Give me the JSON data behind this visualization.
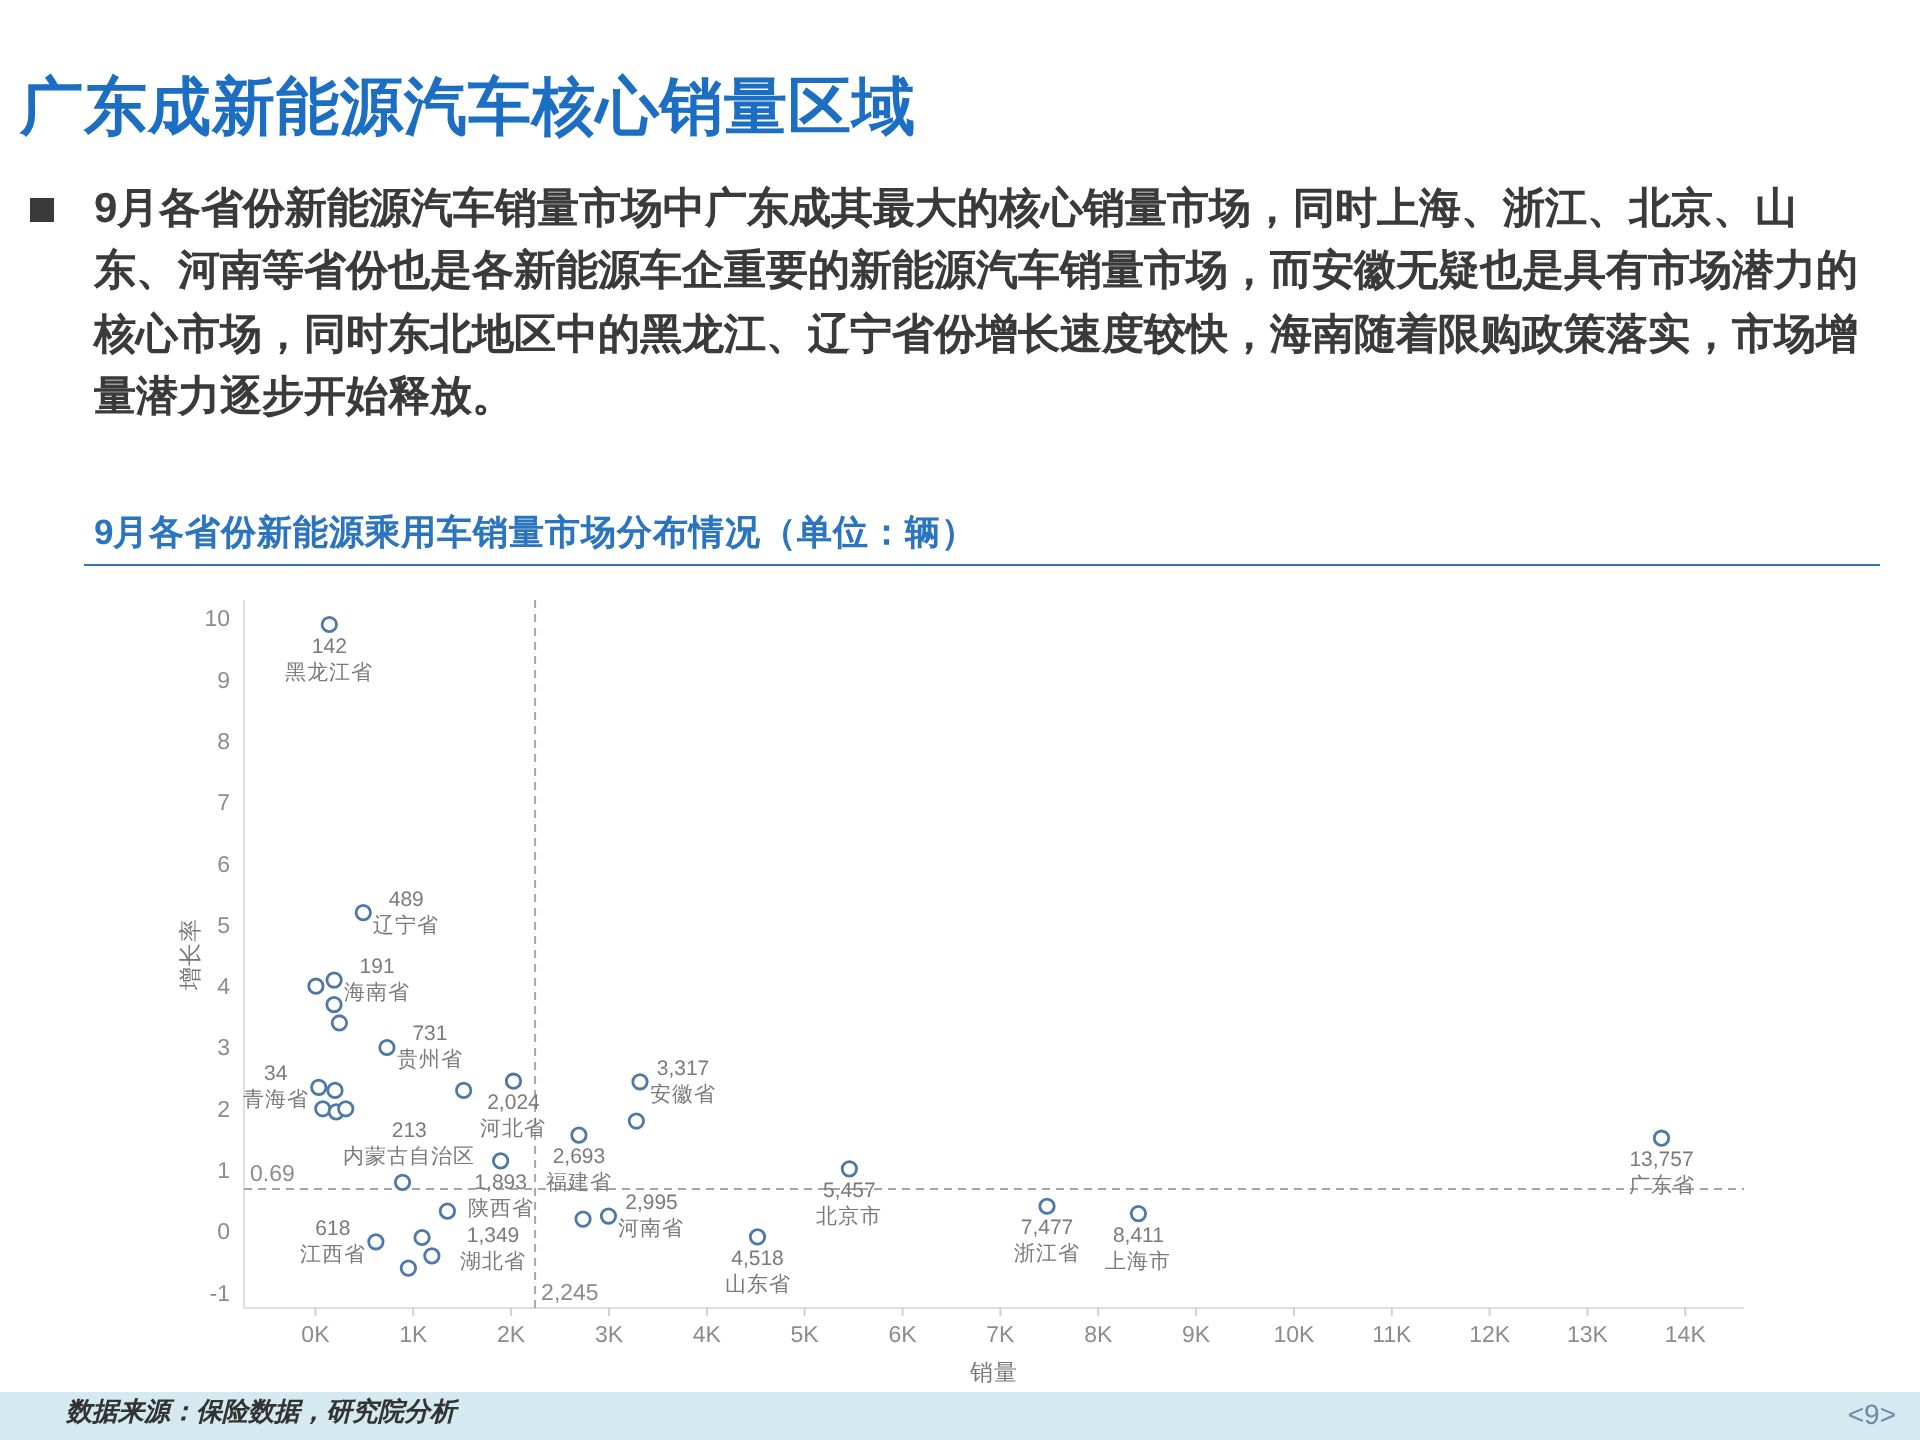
{
  "chart_data": {
    "type": "scatter",
    "title": "广东成新能源汽车核心销量区域",
    "subtitle": "9月各省份新能源汽车销量市场中广东成其最大的核心销量市场，同时上海、浙江、北京、山东、河南等省份也是各新能源车企重要的新能源汽车销量市场，而安徽无疑也是具有市场潜力的核心市场，同时东北地区中的黑龙江、辽宁省份增长速度较快，海南随着限购政策落实，市场增量潜力逐步开始释放。",
    "annotations": [
      "9月各省份新能源乘用车销量市场分布情况（单位：辆）",
      "数据来源：保险数据，研究院分析",
      "<9>",
      {
        "text": "142\n黑龙江省",
        "x": 142,
        "y": 9.9
      },
      {
        "text": "489\n辽宁省",
        "x": 489,
        "y": 5.2
      },
      {
        "text": "191\n海南省",
        "x": 191,
        "y": 4.1
      },
      {
        "text": "731\n贵州省",
        "x": 731,
        "y": 3.0
      },
      {
        "text": "34\n青海省",
        "x": 34,
        "y": 2.35
      },
      {
        "text": "213\n内蒙古自治区",
        "x": 213,
        "y": 1.95
      },
      {
        "text": "2,024\n河北省",
        "x": 2024,
        "y": 2.45
      },
      {
        "text": "1,893\n陕西省",
        "x": 1893,
        "y": 1.15
      },
      {
        "text": "1,349\n湖北省",
        "x": 1349,
        "y": 0.33
      },
      {
        "text": "618\n江西省",
        "x": 618,
        "y": -0.17
      },
      {
        "text": "3,317\n安徽省",
        "x": 3317,
        "y": 2.44
      },
      {
        "text": "2,693\n福建省",
        "x": 2693,
        "y": 1.57
      },
      {
        "text": "2,995\n河南省",
        "x": 2995,
        "y": 0.25
      },
      {
        "text": "4,518\n山东省",
        "x": 4518,
        "y": -0.09
      },
      {
        "text": "5,457\n北京市",
        "x": 5457,
        "y": 1.02
      },
      {
        "text": "7,477\n浙江省",
        "x": 7477,
        "y": 0.41
      },
      {
        "text": "8,411\n上海市",
        "x": 8411,
        "y": 0.29
      },
      {
        "text": "13,757\n广东省",
        "x": 13757,
        "y": 1.52
      }
    ],
    "xlabel": "销量",
    "ylabel": "增长率",
    "x": [
      142,
      489,
      191,
      5,
      190,
      245,
      731,
      34,
      200,
      75,
      213,
      310,
      1515,
      2024,
      1893,
      890,
      1349,
      618,
      1090,
      1190,
      950,
      3317,
      3280,
      2693,
      2735,
      2995,
      4518,
      5457,
      7477,
      8411,
      13757
    ],
    "values": [
      9.9,
      5.2,
      4.1,
      4.0,
      3.7,
      3.4,
      3.0,
      2.35,
      2.3,
      2.0,
      1.95,
      2.0,
      2.3,
      2.45,
      1.15,
      0.8,
      0.33,
      -0.17,
      -0.1,
      -0.4,
      -0.6,
      2.44,
      1.8,
      1.57,
      0.2,
      0.25,
      -0.09,
      1.02,
      0.41,
      0.29,
      1.52
    ],
    "color": "#4e79a7",
    "marker": "circle",
    "xlim": [
      -730,
      14600
    ],
    "ylim": [
      -1.25,
      10.3
    ],
    "xticks": [
      {
        "value": 0,
        "label": "0K"
      },
      {
        "value": 1000,
        "label": "1K"
      },
      {
        "value": 2000,
        "label": "2K"
      },
      {
        "value": 3000,
        "label": "3K"
      },
      {
        "value": 4000,
        "label": "4K"
      },
      {
        "value": 5000,
        "label": "5K"
      },
      {
        "value": 6000,
        "label": "6K"
      },
      {
        "value": 7000,
        "label": "7K"
      },
      {
        "value": 8000,
        "label": "8K"
      },
      {
        "value": 9000,
        "label": "9K"
      },
      {
        "value": 10000,
        "label": "10K"
      },
      {
        "value": 11000,
        "label": "11K"
      },
      {
        "value": 12000,
        "label": "12K"
      },
      {
        "value": 13000,
        "label": "13K"
      },
      {
        "value": 14000,
        "label": "14K"
      }
    ],
    "yticks": [
      -1,
      0,
      1,
      2,
      3,
      4,
      5,
      6,
      7,
      8,
      9,
      10
    ],
    "ref_lines": [
      {
        "axis": "y",
        "value": 0.69,
        "label": "0.69",
        "color": "#a6a6a6",
        "line_style": "dashed"
      },
      {
        "axis": "x",
        "value": 2245,
        "label": "2,245",
        "color": "#a6a6a6",
        "line_style": "dashed"
      }
    ]
  }
}
